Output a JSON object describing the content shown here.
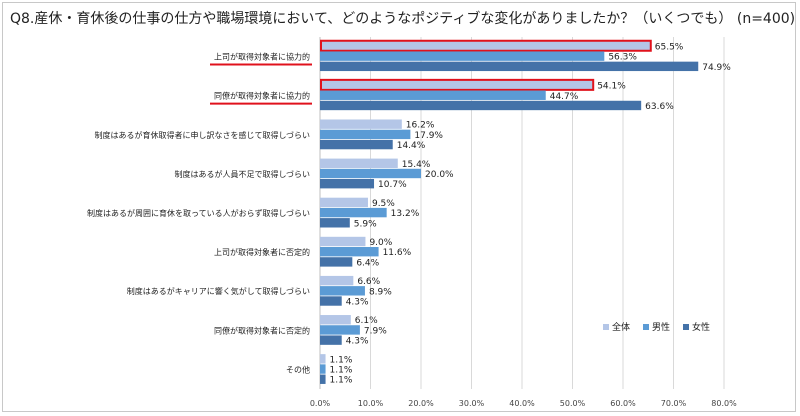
{
  "title": "Q8.産休・育休後の仕事の仕方や職場環境において、どのようなポジティブな変化がありましたか？（いくつでも） (n=400)",
  "colors": {
    "zentai": "#B4C6E7",
    "dansei": "#5B9BD5",
    "josei": "#4472A8",
    "highlight": "#E0121C"
  },
  "chart_data": {
    "type": "bar",
    "orientation": "horizontal",
    "categories": [
      "上司が取得対象者に協力的",
      "同僚が取得対象者に協力的",
      "制度はあるが育休取得者に申し訳なさを感じて取得しづらい",
      "制度はあるが人員不足で取得しづらい",
      "制度はあるが周囲に育休を取っている人がおらず取得しづらい",
      "上司が取得対象者に否定的",
      "制度はあるがキャリアに響く気がして取得しづらい",
      "同僚が取得対象者に否定的",
      "その他"
    ],
    "series": [
      {
        "name": "全体",
        "values": [
          65.5,
          54.1,
          16.2,
          15.4,
          9.5,
          9.0,
          6.6,
          6.1,
          1.1
        ]
      },
      {
        "name": "男性",
        "values": [
          56.3,
          44.7,
          17.9,
          20.0,
          13.2,
          11.6,
          8.9,
          7.9,
          1.1
        ]
      },
      {
        "name": "女性",
        "values": [
          74.9,
          63.6,
          14.4,
          10.7,
          5.9,
          6.4,
          4.3,
          4.3,
          1.1
        ]
      }
    ],
    "xlim": [
      0,
      80
    ],
    "ticks": [
      "0.0%",
      "10.0%",
      "20.0%",
      "30.0%",
      "40.0%",
      "50.0%",
      "60.0%",
      "70.0%",
      "80.0%"
    ],
    "value_suffix": "%",
    "grid": true,
    "legend_position": "bottom-right",
    "highlighted_categories": [
      0,
      1
    ]
  }
}
